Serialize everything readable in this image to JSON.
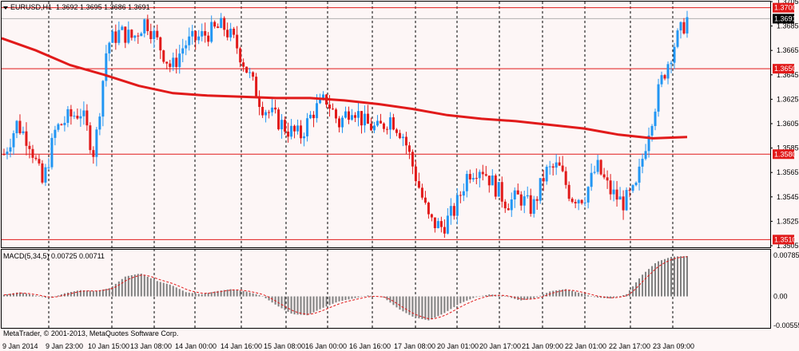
{
  "header": {
    "symbol_timeframe": "EURUSD,H1",
    "ohlc": "1.3692 1.3695 1.3686 1.3691"
  },
  "indicator": {
    "title": "MACD(5,34,5) 0.00725 0.00711"
  },
  "copyright": "MetaTrader, © 2001-2013, MetaQuotes Software Corp.",
  "colors": {
    "background": "#fdf6f6",
    "bull_candle": "#2196f3",
    "bear_candle": "#e11a1a",
    "moving_average": "#e11a1a",
    "hline": "#e11a1a",
    "grid": "#000000",
    "histogram": "#808080",
    "signal": "#e11a1a"
  },
  "chart_data": [
    {
      "type": "candlestick",
      "symbol": "EURUSD",
      "timeframe": "H1",
      "ylim": [
        1.3505,
        1.3705
      ],
      "y_ticks": [
        "1.3705",
        "1.3685",
        "1.3665",
        "1.3645",
        "1.3625",
        "1.3605",
        "1.3585",
        "1.3565",
        "1.3545",
        "1.3525",
        "1.3505"
      ],
      "x_ticks": [
        "9 Jan 2014",
        "9 Jan 23:00",
        "10 Jan 15:00",
        "13 Jan 08:00",
        "14 Jan 00:00",
        "14 Jan 16:00",
        "15 Jan 08:00",
        "16 Jan 00:00",
        "16 Jan 16:00",
        "17 Jan 08:00",
        "20 Jan 01:00",
        "20 Jan 17:00",
        "21 Jan 09:00",
        "22 Jan 01:00",
        "22 Jan 17:00",
        "23 Jan 09:00"
      ],
      "horizontal_levels": [
        "1.3700",
        "1.3650",
        "1.3580",
        "1.3510"
      ],
      "current_price": "1.3691",
      "close_path": [
        1.358,
        1.3605,
        1.359,
        1.3555,
        1.36,
        1.361,
        1.3615,
        1.358,
        1.367,
        1.368,
        1.3675,
        1.369,
        1.367,
        1.365,
        1.367,
        1.3675,
        1.368,
        1.3685,
        1.367,
        1.3645,
        1.362,
        1.361,
        1.36,
        1.3595,
        1.3615,
        1.3625,
        1.3605,
        1.362,
        1.3605,
        1.36,
        1.361,
        1.3595,
        1.356,
        1.3525,
        1.352,
        1.3535,
        1.3565,
        1.357,
        1.3555,
        1.354,
        1.3545,
        1.3535,
        1.3565,
        1.357,
        1.3545,
        1.3545,
        1.357,
        1.355,
        1.354,
        1.355,
        1.36,
        1.364,
        1.367,
        1.3691
      ],
      "moving_average_path": [
        1.3675,
        1.3665,
        1.3653,
        1.3645,
        1.3636,
        1.363,
        1.3628,
        1.3627,
        1.3626,
        1.3626,
        1.3624,
        1.3621,
        1.3617,
        1.3612,
        1.3609,
        1.3607,
        1.3604,
        1.3601,
        1.3596,
        1.3593,
        1.3594
      ]
    },
    {
      "type": "bar",
      "title": "MACD(5,34,5)",
      "main": "0.00725",
      "signal": "0.00711",
      "y_ticks": [
        "0.00785",
        "0.00",
        "-0.00555"
      ],
      "ylim": [
        -0.00555,
        0.00785
      ],
      "histogram_path": [
        0.0003,
        0.0008,
        0.0002,
        -0.0004,
        0.0006,
        0.0012,
        0.001,
        0.0016,
        0.0038,
        0.0044,
        0.003,
        0.0022,
        0.0008,
        0.0004,
        0.001,
        0.0014,
        0.0009,
        0.0001,
        -0.0018,
        -0.0034,
        -0.0036,
        -0.0022,
        -0.001,
        -0.0004,
        0.0002,
        -0.0002,
        -0.0024,
        -0.004,
        -0.0046,
        -0.0032,
        -0.0014,
        -0.0002,
        0.0004,
        0.0001,
        -0.0008,
        -0.0003,
        0.001,
        0.0014,
        0.0006,
        -0.0002,
        -0.0004,
        0.0004,
        0.004,
        0.0066,
        0.0076,
        0.0077
      ]
    }
  ]
}
